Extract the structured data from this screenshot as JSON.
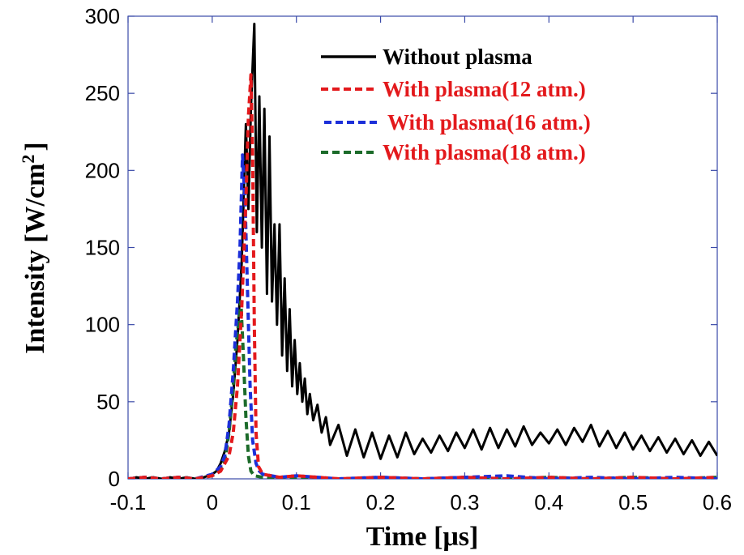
{
  "chart_data": {
    "type": "line",
    "xlabel": "Time [μs]",
    "ylabel": "Intensity [W/cm",
    "ylabel_superscript": "2",
    "ylabel_suffix": "]",
    "xlim": [
      -0.1,
      0.6
    ],
    "ylim": [
      0,
      300
    ],
    "xticks": [
      -0.1,
      0,
      0.1,
      0.2,
      0.3,
      0.4,
      0.5,
      0.6
    ],
    "xtick_labels": [
      "-0.1",
      "0",
      "0.1",
      "0.2",
      "0.3",
      "0.4",
      "0.5",
      "0.6"
    ],
    "yticks": [
      0,
      50,
      100,
      150,
      200,
      250,
      300
    ],
    "ytick_labels": [
      "0",
      "50",
      "100",
      "150",
      "200",
      "250",
      "300"
    ],
    "grid": false,
    "legend_position": "top-right",
    "series": [
      {
        "name": "Without plasma",
        "color": "#000000",
        "dash": "solid",
        "x": [
          -0.1,
          -0.09,
          -0.08,
          -0.07,
          -0.06,
          -0.05,
          -0.04,
          -0.03,
          -0.02,
          -0.01,
          0.0,
          0.005,
          0.01,
          0.015,
          0.02,
          0.025,
          0.03,
          0.035,
          0.04,
          0.043,
          0.046,
          0.05,
          0.053,
          0.056,
          0.059,
          0.062,
          0.065,
          0.068,
          0.071,
          0.074,
          0.077,
          0.08,
          0.083,
          0.086,
          0.089,
          0.092,
          0.095,
          0.098,
          0.101,
          0.104,
          0.107,
          0.11,
          0.113,
          0.116,
          0.12,
          0.125,
          0.13,
          0.135,
          0.14,
          0.15,
          0.16,
          0.17,
          0.18,
          0.19,
          0.2,
          0.21,
          0.22,
          0.23,
          0.24,
          0.25,
          0.26,
          0.27,
          0.28,
          0.29,
          0.3,
          0.31,
          0.32,
          0.33,
          0.34,
          0.35,
          0.36,
          0.37,
          0.38,
          0.39,
          0.4,
          0.41,
          0.42,
          0.43,
          0.44,
          0.45,
          0.46,
          0.47,
          0.48,
          0.49,
          0.5,
          0.51,
          0.52,
          0.53,
          0.54,
          0.55,
          0.56,
          0.57,
          0.58,
          0.59,
          0.6
        ],
        "y": [
          0,
          1,
          0,
          1,
          0,
          1,
          0,
          1,
          0,
          1,
          3,
          5,
          10,
          18,
          30,
          55,
          90,
          140,
          230,
          175,
          240,
          295,
          160,
          248,
          150,
          240,
          120,
          222,
          115,
          165,
          100,
          165,
          80,
          130,
          70,
          110,
          60,
          90,
          55,
          75,
          50,
          65,
          42,
          55,
          38,
          48,
          30,
          40,
          22,
          35,
          15,
          32,
          14,
          30,
          13,
          28,
          14,
          30,
          16,
          26,
          17,
          28,
          18,
          30,
          20,
          32,
          19,
          33,
          20,
          32,
          21,
          34,
          22,
          30,
          23,
          32,
          22,
          33,
          24,
          35,
          21,
          31,
          20,
          30,
          19,
          28,
          18,
          27,
          17,
          26,
          16,
          25,
          15,
          24,
          15
        ]
      },
      {
        "name": "With plasma(12 atm.)",
        "color": "#e3191c",
        "dash": "dashed",
        "x": [
          -0.1,
          -0.08,
          -0.06,
          -0.04,
          -0.02,
          0.0,
          0.01,
          0.02,
          0.025,
          0.03,
          0.035,
          0.04,
          0.043,
          0.046,
          0.048,
          0.05,
          0.052,
          0.055,
          0.06,
          0.08,
          0.1,
          0.15,
          0.2,
          0.25,
          0.3,
          0.35,
          0.4,
          0.45,
          0.5,
          0.55,
          0.6
        ],
        "y": [
          0,
          1,
          0,
          1,
          0,
          2,
          5,
          15,
          30,
          60,
          110,
          180,
          235,
          262,
          210,
          100,
          30,
          8,
          3,
          1,
          2,
          0,
          1,
          0,
          1,
          0,
          1,
          0,
          1,
          0,
          1
        ]
      },
      {
        "name": "With plasma(16 atm.)",
        "color": "#1c2fd9",
        "dash": "dashed",
        "x": [
          -0.1,
          -0.08,
          -0.06,
          -0.04,
          -0.02,
          0.0,
          0.01,
          0.015,
          0.02,
          0.025,
          0.03,
          0.033,
          0.036,
          0.039,
          0.042,
          0.045,
          0.048,
          0.052,
          0.056,
          0.06,
          0.08,
          0.1,
          0.15,
          0.2,
          0.25,
          0.3,
          0.35,
          0.4,
          0.45,
          0.5,
          0.55,
          0.6
        ],
        "y": [
          0,
          1,
          0,
          1,
          0,
          3,
          8,
          15,
          35,
          70,
          115,
          150,
          210,
          180,
          120,
          60,
          25,
          10,
          5,
          3,
          1,
          2,
          0,
          1,
          0,
          1,
          2,
          0,
          1,
          0,
          1,
          0
        ]
      },
      {
        "name": "With plasma(18 atm.)",
        "color": "#1c6b2a",
        "dash": "dashed",
        "x": [
          -0.1,
          -0.08,
          -0.06,
          -0.04,
          -0.02,
          0.0,
          0.01,
          0.015,
          0.02,
          0.025,
          0.028,
          0.031,
          0.034,
          0.037,
          0.04,
          0.043,
          0.046,
          0.05,
          0.06,
          0.08,
          0.1,
          0.15,
          0.2,
          0.25,
          0.3,
          0.35,
          0.4,
          0.45,
          0.5,
          0.55,
          0.6
        ],
        "y": [
          0,
          1,
          0,
          1,
          0,
          2,
          6,
          12,
          30,
          60,
          85,
          100,
          115,
          80,
          40,
          15,
          5,
          2,
          1,
          0,
          1,
          0,
          1,
          0,
          1,
          0,
          1,
          0,
          1,
          0,
          1
        ]
      }
    ]
  }
}
